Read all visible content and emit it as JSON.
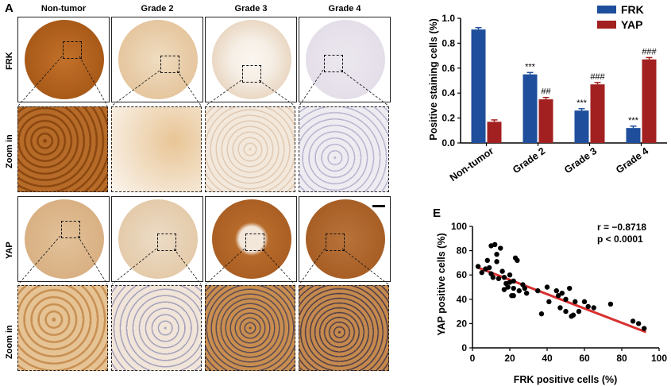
{
  "panel_a": {
    "letter": "A",
    "columns": [
      "Non-tumor",
      "Grade 2",
      "Grade 3",
      "Grade 4"
    ],
    "rows": {
      "frk": "FRK",
      "zoom1": "Zoom in",
      "yap": "YAP",
      "zoom2": "Zoom in"
    },
    "colors": {
      "frk_circles": [
        "#b8661f",
        "#ead1ad",
        "#f1e6da",
        "#e7e2ea"
      ],
      "frk_zooms": [
        "#a95f1b",
        "#f1dcc0",
        "#f2e5d8",
        "#ebe8f0"
      ],
      "yap_circles": [
        "#dcb588",
        "#e6cfb2",
        "#b56a2c",
        "#a95f28"
      ],
      "yap_zooms": [
        "#e3bf8c",
        "#efe3d4",
        "#c9914f",
        "#c99359"
      ]
    }
  },
  "panel_d": {
    "ylabel": "Positive staining cells (%)",
    "legend": [
      "FRK",
      "YAP"
    ],
    "y_ticks": [
      "0.0",
      "0.2",
      "0.4",
      "0.6",
      "0.8",
      "1.0"
    ],
    "annotations_frk": [
      "",
      "***",
      "***",
      "***"
    ],
    "annotations_yap": [
      "",
      "##",
      "###",
      "###"
    ]
  },
  "panel_e": {
    "letter": "E",
    "stats_r": "r = −0.8718",
    "stats_p": "p < 0.0001",
    "xlabel": "FRK positive cells (%)",
    "ylabel": "YAP positive cells (%)",
    "x_ticks": [
      "0",
      "20",
      "40",
      "60",
      "80",
      "100"
    ],
    "y_ticks": [
      "0",
      "20",
      "40",
      "60",
      "80",
      "100"
    ]
  },
  "chart_data": [
    {
      "type": "bar",
      "title": "",
      "categories": [
        "Non-tumor",
        "Grade 2",
        "Grade 3",
        "Grade 4"
      ],
      "series": [
        {
          "name": "FRK",
          "color": "#1f4e9c",
          "values": [
            0.91,
            0.55,
            0.26,
            0.12
          ]
        },
        {
          "name": "YAP",
          "color": "#a32020",
          "values": [
            0.17,
            0.35,
            0.47,
            0.67
          ]
        }
      ],
      "xlabel": "",
      "ylabel": "Positive staining cells (%)",
      "ylim": [
        0,
        1.0
      ]
    },
    {
      "type": "scatter",
      "title": "",
      "xlabel": "FRK positive cells (%)",
      "ylabel": "YAP positive cells (%)",
      "xlim": [
        0,
        100
      ],
      "ylim": [
        0,
        100
      ],
      "points": [
        [
          3,
          67
        ],
        [
          5,
          62
        ],
        [
          7,
          65
        ],
        [
          8,
          72
        ],
        [
          9,
          66
        ],
        [
          10,
          84
        ],
        [
          10,
          61
        ],
        [
          11,
          58
        ],
        [
          12,
          85
        ],
        [
          13,
          77
        ],
        [
          13,
          71
        ],
        [
          14,
          57
        ],
        [
          15,
          82
        ],
        [
          16,
          63
        ],
        [
          17,
          48
        ],
        [
          17,
          58
        ],
        [
          18,
          53
        ],
        [
          19,
          50
        ],
        [
          20,
          60
        ],
        [
          20,
          54
        ],
        [
          21,
          43
        ],
        [
          22,
          55
        ],
        [
          22,
          49
        ],
        [
          22,
          43
        ],
        [
          23,
          74
        ],
        [
          24,
          72
        ],
        [
          25,
          47
        ],
        [
          27,
          52
        ],
        [
          28,
          49
        ],
        [
          29,
          45
        ],
        [
          35,
          47
        ],
        [
          37,
          28
        ],
        [
          40,
          50
        ],
        [
          41,
          38
        ],
        [
          45,
          47
        ],
        [
          46,
          43
        ],
        [
          47,
          33
        ],
        [
          48,
          45
        ],
        [
          50,
          30
        ],
        [
          50,
          40
        ],
        [
          52,
          49
        ],
        [
          53,
          26
        ],
        [
          54,
          27
        ],
        [
          55,
          38
        ],
        [
          57,
          30
        ],
        [
          60,
          38
        ],
        [
          62,
          34
        ],
        [
          65,
          33
        ],
        [
          74,
          36
        ],
        [
          86,
          22
        ],
        [
          89,
          20
        ],
        [
          92,
          16
        ]
      ],
      "regression_line": {
        "x": [
          3,
          93
        ],
        "y": [
          66,
          13
        ],
        "color": "#d8302f"
      }
    }
  ]
}
